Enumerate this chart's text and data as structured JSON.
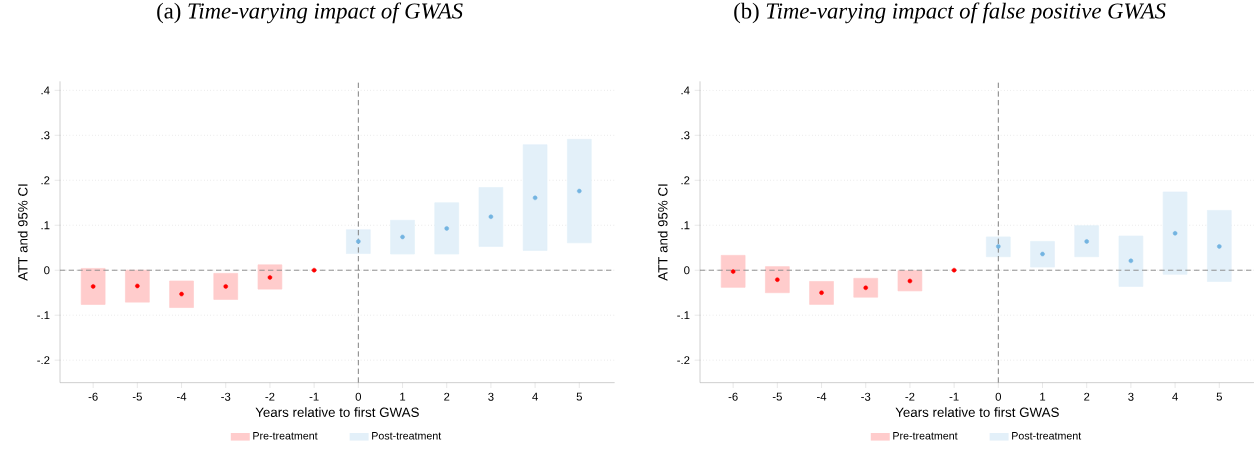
{
  "chart_data": [
    {
      "type": "bar",
      "title": "(a) *Time-varying impact of GWAS*",
      "xlabel": "Years relative to first GWAS",
      "ylabel": "ATT and 95% CI",
      "series": [
        {
          "name": "Pre-treatment",
          "color": "#ffcccc",
          "x": [
            -6,
            -5,
            -4,
            -3,
            -2
          ],
          "base": [
            -0.076,
            -0.071,
            -0.083,
            -0.065,
            -0.042
          ],
          "values": [
            0.08,
            0.071,
            0.059,
            0.058,
            0.054
          ]
        },
        {
          "name": "Post-treatment",
          "color": "#e3f0f9",
          "x": [
            0,
            1,
            2,
            3,
            4,
            5
          ],
          "base": [
            0.037,
            0.036,
            0.036,
            0.053,
            0.044,
            0.061
          ],
          "values": [
            0.053,
            0.075,
            0.114,
            0.131,
            0.235,
            0.23
          ]
        },
        {
          "type": "scatter",
          "color": "#ff0000",
          "x": [
            -6,
            -5,
            -4,
            -3,
            -2,
            -1
          ],
          "values": [
            -0.036,
            -0.035,
            -0.053,
            -0.036,
            -0.016,
            0
          ]
        },
        {
          "type": "scatter",
          "color": "#73b4e1",
          "x": [
            0,
            1,
            2,
            3,
            4,
            5
          ],
          "values": [
            0.064,
            0.074,
            0.093,
            0.119,
            0.161,
            0.176
          ]
        }
      ],
      "xlim": [
        -6.75,
        5.8
      ],
      "ylim": [
        -0.25,
        0.42
      ],
      "xticks": [
        -6,
        -5,
        -4,
        -3,
        -2,
        -1,
        0,
        1,
        2,
        3,
        4,
        5
      ],
      "yticks": [
        {
          "value": -0.2,
          "label": "-.2"
        },
        {
          "value": -0.1,
          "label": "-.1"
        },
        0,
        {
          "value": 0.1,
          "label": ".1"
        },
        {
          "value": 0.2,
          "label": ".2"
        },
        {
          "value": 0.3,
          "label": ".3"
        },
        {
          "value": 0.4,
          "label": ".4"
        }
      ],
      "ref_lines": [
        {
          "axis": "y",
          "value": 0,
          "line_style": "dashed",
          "color": "#888888"
        },
        {
          "axis": "x",
          "value": 0,
          "line_style": "dashed",
          "color": "#777777"
        }
      ],
      "grid": "y",
      "legend": "bottom",
      "marker": "circle"
    },
    {
      "type": "bar",
      "title": "(b) *Time-varying impact of false positive GWAS*",
      "xlabel": "Years relative to first GWAS",
      "ylabel": "ATT and 95% CI",
      "series": [
        {
          "name": "Pre-treatment",
          "color": "#ffcccc",
          "x": [
            -6,
            -5,
            -4,
            -3,
            -2
          ],
          "base": [
            -0.038,
            -0.05,
            -0.076,
            -0.06,
            -0.046
          ],
          "values": [
            0.071,
            0.058,
            0.051,
            0.042,
            0.045
          ]
        },
        {
          "name": "Post-treatment",
          "color": "#e3f0f9",
          "x": [
            0,
            1,
            2,
            3,
            4,
            5
          ],
          "base": [
            0.03,
            0.007,
            0.03,
            -0.036,
            -0.009,
            -0.025
          ],
          "values": [
            0.044,
            0.057,
            0.069,
            0.112,
            0.183,
            0.158
          ]
        },
        {
          "type": "scatter",
          "color": "#ff0000",
          "x": [
            -6,
            -5,
            -4,
            -3,
            -2,
            -1
          ],
          "values": [
            -0.003,
            -0.021,
            -0.05,
            -0.039,
            -0.024,
            0
          ]
        },
        {
          "type": "scatter",
          "color": "#73b4e1",
          "x": [
            0,
            1,
            2,
            3,
            4,
            5
          ],
          "values": [
            0.053,
            0.036,
            0.064,
            0.021,
            0.082,
            0.053
          ]
        }
      ],
      "xlim": [
        -6.75,
        5.8
      ],
      "ylim": [
        -0.25,
        0.42
      ],
      "xticks": [
        -6,
        -5,
        -4,
        -3,
        -2,
        -1,
        0,
        1,
        2,
        3,
        4,
        5
      ],
      "yticks": [
        {
          "value": -0.2,
          "label": "-.2"
        },
        {
          "value": -0.1,
          "label": "-.1"
        },
        0,
        {
          "value": 0.1,
          "label": ".1"
        },
        {
          "value": 0.2,
          "label": ".2"
        },
        {
          "value": 0.3,
          "label": ".3"
        },
        {
          "value": 0.4,
          "label": ".4"
        }
      ],
      "ref_lines": [
        {
          "axis": "y",
          "value": 0,
          "line_style": "dashed",
          "color": "#888888"
        },
        {
          "axis": "x",
          "value": 0,
          "line_style": "dashed",
          "color": "#777777"
        }
      ],
      "grid": "y",
      "legend": "bottom",
      "marker": "circle"
    }
  ]
}
